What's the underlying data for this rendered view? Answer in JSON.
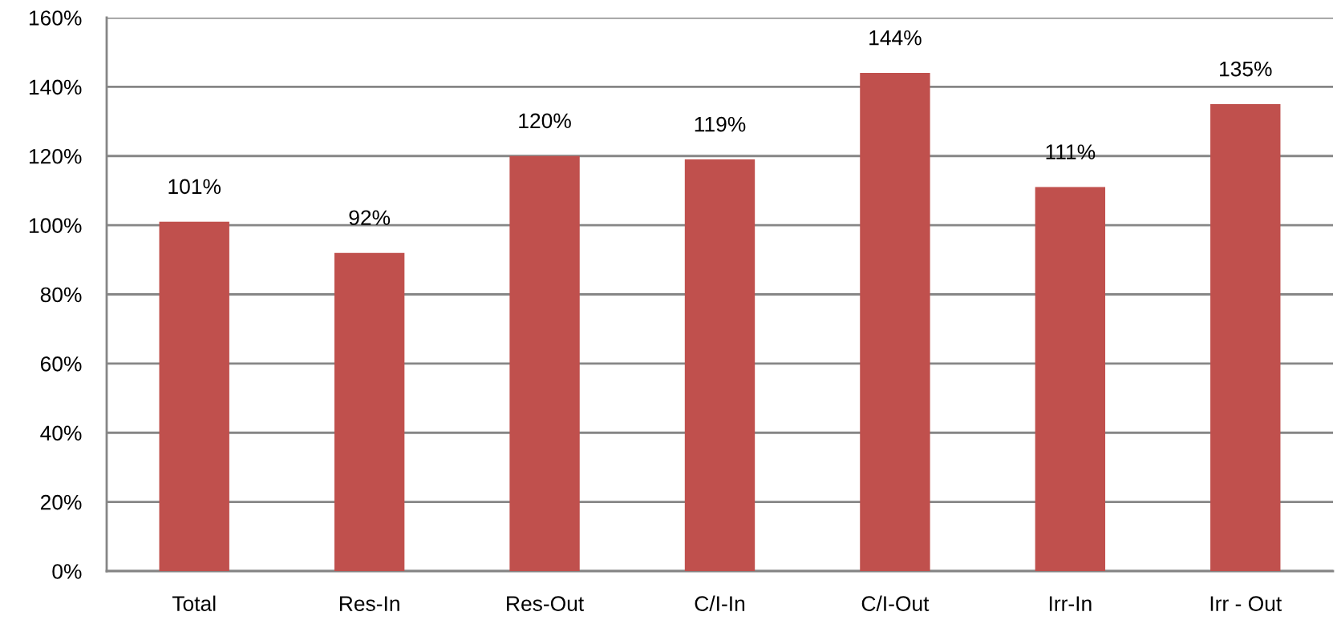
{
  "chart_data": {
    "type": "bar",
    "categories": [
      "Total",
      "Res-In",
      "Res-Out",
      "C/I-In",
      "C/I-Out",
      "Irr-In",
      "Irr - Out"
    ],
    "values": [
      101,
      92,
      120,
      119,
      144,
      111,
      135
    ],
    "value_labels": [
      "101%",
      "92%",
      "120%",
      "119%",
      "144%",
      "111%",
      "135%"
    ],
    "color": "#c0504d",
    "ylim": [
      0,
      160
    ],
    "yticks": [
      {
        "value": 0,
        "label": "0%"
      },
      {
        "value": 20,
        "label": "20%"
      },
      {
        "value": 40,
        "label": "40%"
      },
      {
        "value": 60,
        "label": "60%"
      },
      {
        "value": 80,
        "label": "80%"
      },
      {
        "value": 100,
        "label": "100%"
      },
      {
        "value": 120,
        "label": "120%"
      },
      {
        "value": 140,
        "label": "140%"
      },
      {
        "value": 160,
        "label": "160%"
      }
    ],
    "grid": "y",
    "legend": false
  }
}
